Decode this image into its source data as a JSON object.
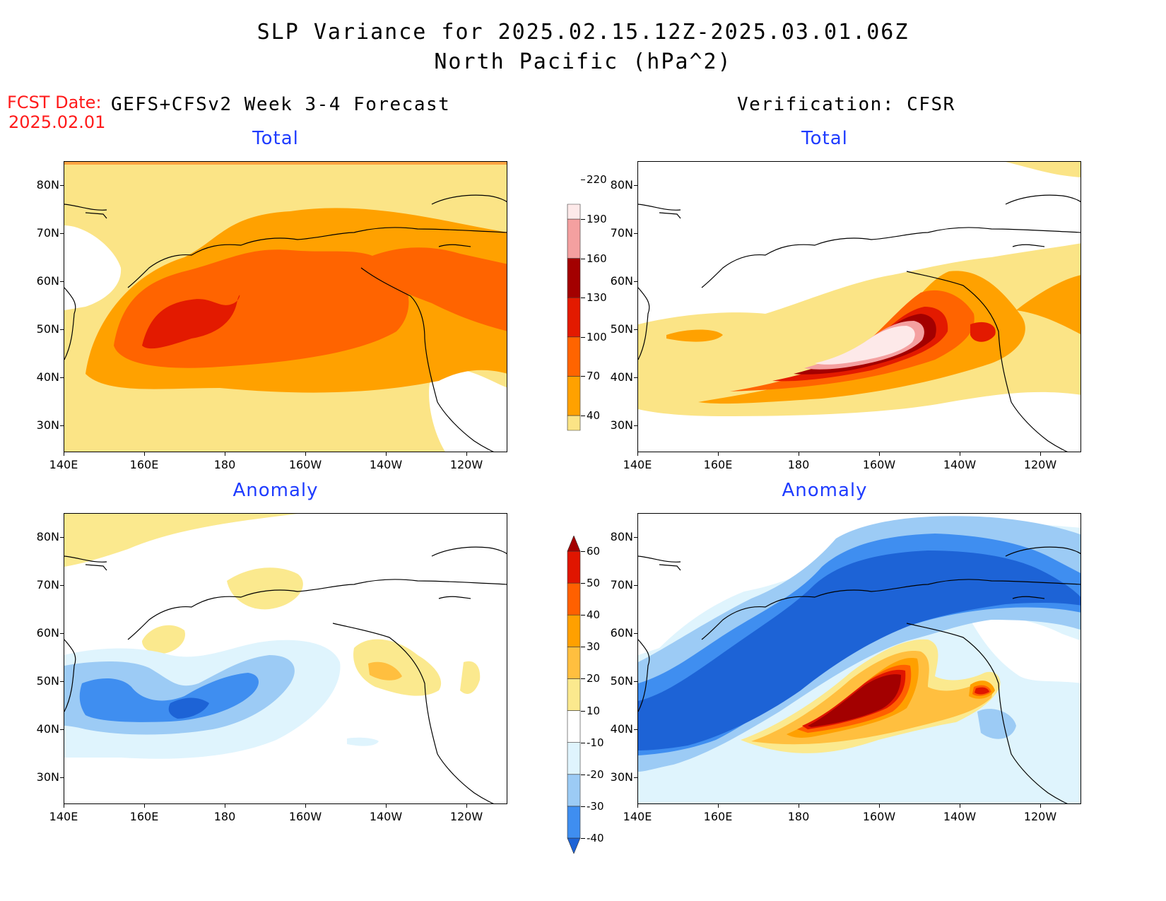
{
  "title": {
    "line1": "SLP Variance for 2025.02.15.12Z-2025.03.01.06Z",
    "line2": "North Pacific (hPa^2)"
  },
  "fcst": {
    "label": "FCST Date:",
    "date": "2025.02.01"
  },
  "left_header": "GEFS+CFSv2 Week 3-4 Forecast",
  "right_header": "Verification: CFSR",
  "panels": {
    "fcst_total": {
      "title": "Total"
    },
    "verif_total": {
      "title": "Total"
    },
    "fcst_anom": {
      "title": "Anomaly"
    },
    "verif_anom": {
      "title": "Anomaly"
    }
  },
  "lat_labels": [
    "80N",
    "70N",
    "60N",
    "50N",
    "40N",
    "30N"
  ],
  "lon_labels": [
    "140E",
    "160E",
    "180",
    "160W",
    "140W",
    "120W"
  ],
  "total_colorbar": {
    "labels": [
      "40",
      "70",
      "100",
      "130",
      "160",
      "190",
      "220"
    ],
    "colors": [
      "#fbe486",
      "#ffa100",
      "#ff6400",
      "#e31a00",
      "#a30000",
      "#f4a0a0",
      "#fde9e9"
    ]
  },
  "anomaly_colorbar": {
    "labels": [
      "-40",
      "-30",
      "-20",
      "-10",
      "10",
      "20",
      "30",
      "40",
      "50",
      "60"
    ],
    "colors": [
      "#1d63d6",
      "#3f8ef0",
      "#9ccbf5",
      "#dff4fd",
      "#ffffff",
      "#fbe98e",
      "#ffbf3f",
      "#ffa000",
      "#ff6000",
      "#e01500",
      "#a30000"
    ]
  },
  "colors": {
    "title_blue": "#1f3cff",
    "fcst_red": "#ff1a1a"
  }
}
